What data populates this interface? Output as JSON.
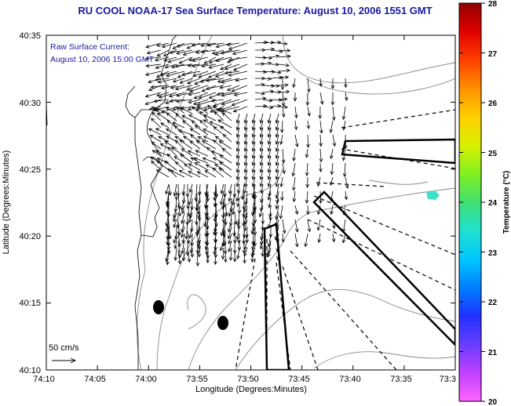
{
  "title": "RU COOL  NOAA-17  Sea Surface Temperature:  August 10, 2006 1551 GMT",
  "current_label": "Raw Surface Current:",
  "current_time": "August 10, 2006 15:00 GMT",
  "scale_label": "50 cm/s",
  "xaxis": {
    "label": "Longitude (Degrees:Minutes)",
    "ticks": [
      "74:10",
      "74:05",
      "74:00",
      "73:55",
      "73:50",
      "73:45",
      "73:40",
      "73:35",
      "73:3"
    ]
  },
  "yaxis": {
    "label": "Latitude (Degrees:Minutes)",
    "ticks": [
      "40:35",
      "40:30",
      "40:25",
      "40:20",
      "40:15",
      "40:10"
    ]
  },
  "colorbar": {
    "label": "Temperature (°C)",
    "ticks": [
      "28",
      "27",
      "26",
      "25",
      "24",
      "23",
      "22",
      "21",
      "20"
    ],
    "colors": [
      "#ff66ff",
      "#c040ff",
      "#6a3cff",
      "#2030ff",
      "#0080ff",
      "#00c8ff",
      "#20e0d0",
      "#40e070",
      "#80f020",
      "#d8f000",
      "#ffd000",
      "#ff9000",
      "#ff4000",
      "#e00000",
      "#900000"
    ]
  },
  "colors": {
    "coastline": "#000000",
    "bathymetry": "#888888",
    "sst_patch": "#40e0c8",
    "title": "#1a1aa0"
  }
}
